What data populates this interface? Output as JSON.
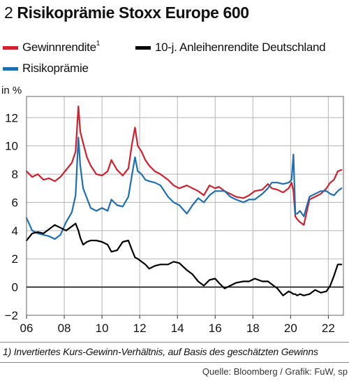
{
  "title_number": "2",
  "title_text": "Risikoprämie Stoxx Europe 600",
  "legend": [
    {
      "label": "Gewinnrendite",
      "sup": "1",
      "color": "#d0202e"
    },
    {
      "label": "10-j. Anleihenrendite Deutschland",
      "sup": "",
      "color": "#000000"
    },
    {
      "label": "Risikoprämie",
      "sup": "",
      "color": "#1e6eb4"
    }
  ],
  "footnote": "1) Invertiertes Kurs-Gewinn-Verhältnis, auf Basis des geschätzten Gewinns",
  "source": "Quelle: Bloomberg / Grafik: FuW, sp",
  "chart_data": {
    "type": "line",
    "ylabel": "in %",
    "xlim": [
      2006.0,
      2022.8
    ],
    "ylim": [
      -2,
      13.5
    ],
    "yticks": [
      -2,
      0,
      2,
      4,
      6,
      8,
      10,
      12
    ],
    "ytick_labels": [
      "−2",
      "0",
      "2",
      "4",
      "6",
      "8",
      "10",
      "12"
    ],
    "xticks": [
      2006,
      2008,
      2010,
      2012,
      2014,
      2016,
      2018,
      2020,
      2022
    ],
    "xtick_labels": [
      "06",
      "08",
      "10",
      "12",
      "14",
      "16",
      "18",
      "20",
      "22"
    ],
    "series": [
      {
        "name": "Gewinnrendite",
        "color": "#d0202e",
        "x": [
          2006.0,
          2006.3,
          2006.6,
          2006.9,
          2007.2,
          2007.5,
          2007.8,
          2008.1,
          2008.4,
          2008.6,
          2008.75,
          2008.85,
          2009.0,
          2009.2,
          2009.4,
          2009.7,
          2010.0,
          2010.3,
          2010.5,
          2010.8,
          2011.1,
          2011.4,
          2011.6,
          2011.75,
          2011.9,
          2012.1,
          2012.3,
          2012.5,
          2012.8,
          2013.1,
          2013.5,
          2013.8,
          2014.1,
          2014.5,
          2014.8,
          2015.1,
          2015.4,
          2015.7,
          2016.0,
          2016.2,
          2016.5,
          2016.8,
          2017.1,
          2017.5,
          2017.8,
          2018.1,
          2018.5,
          2018.8,
          2019.0,
          2019.3,
          2019.6,
          2019.9,
          2020.05,
          2020.15,
          2020.25,
          2020.35,
          2020.5,
          2020.7,
          2021.0,
          2021.3,
          2021.6,
          2021.9,
          2022.1,
          2022.3,
          2022.5,
          2022.7
        ],
        "y": [
          8.2,
          7.8,
          8.0,
          7.6,
          7.7,
          7.5,
          7.8,
          8.3,
          8.8,
          9.6,
          12.8,
          11.0,
          10.2,
          9.2,
          8.6,
          8.0,
          7.9,
          8.2,
          9.0,
          8.3,
          7.9,
          8.4,
          10.2,
          11.3,
          10.0,
          9.6,
          9.0,
          8.6,
          8.2,
          8.0,
          7.6,
          7.2,
          7.0,
          7.2,
          7.0,
          6.8,
          6.5,
          7.2,
          7.0,
          7.1,
          6.8,
          6.6,
          6.4,
          6.3,
          6.5,
          6.8,
          6.9,
          7.3,
          7.0,
          6.9,
          6.7,
          7.0,
          7.4,
          6.8,
          5.0,
          4.8,
          4.6,
          4.4,
          6.2,
          6.4,
          6.6,
          7.0,
          7.4,
          7.6,
          8.2,
          8.3
        ]
      },
      {
        "name": "Risikoprämie",
        "color": "#1e6eb4",
        "x": [
          2006.0,
          2006.3,
          2006.6,
          2006.9,
          2007.2,
          2007.5,
          2007.8,
          2008.1,
          2008.4,
          2008.6,
          2008.75,
          2008.85,
          2009.0,
          2009.2,
          2009.4,
          2009.7,
          2010.0,
          2010.3,
          2010.5,
          2010.8,
          2011.1,
          2011.4,
          2011.6,
          2011.75,
          2011.9,
          2012.1,
          2012.3,
          2012.5,
          2012.8,
          2013.1,
          2013.5,
          2013.8,
          2014.1,
          2014.5,
          2014.8,
          2015.1,
          2015.4,
          2015.7,
          2016.0,
          2016.2,
          2016.5,
          2016.8,
          2017.1,
          2017.5,
          2017.8,
          2018.1,
          2018.5,
          2018.8,
          2019.0,
          2019.3,
          2019.6,
          2019.9,
          2020.05,
          2020.15,
          2020.25,
          2020.35,
          2020.5,
          2020.7,
          2021.0,
          2021.3,
          2021.6,
          2021.9,
          2022.1,
          2022.3,
          2022.5,
          2022.7
        ],
        "y": [
          4.9,
          4.0,
          3.8,
          3.7,
          3.6,
          3.4,
          3.7,
          4.6,
          5.3,
          6.5,
          10.6,
          8.6,
          7.0,
          6.3,
          5.6,
          5.4,
          5.6,
          5.4,
          6.2,
          5.8,
          5.7,
          6.4,
          8.0,
          9.2,
          8.2,
          8.0,
          7.6,
          7.5,
          7.4,
          7.2,
          6.4,
          6.0,
          5.8,
          5.2,
          5.8,
          6.3,
          6.0,
          6.5,
          6.8,
          6.8,
          6.8,
          6.4,
          6.2,
          6.0,
          6.2,
          6.2,
          6.6,
          7.0,
          7.4,
          7.4,
          7.3,
          7.4,
          7.6,
          9.4,
          5.2,
          5.2,
          5.4,
          5.0,
          6.4,
          6.6,
          6.8,
          6.8,
          6.6,
          6.5,
          6.8,
          7.0
        ]
      },
      {
        "name": "10-j. Anleihenrendite Deutschland",
        "color": "#000000",
        "x": [
          2006.0,
          2006.3,
          2006.6,
          2006.9,
          2007.2,
          2007.5,
          2007.8,
          2008.1,
          2008.4,
          2008.6,
          2008.75,
          2008.85,
          2009.0,
          2009.2,
          2009.4,
          2009.7,
          2010.0,
          2010.3,
          2010.5,
          2010.8,
          2011.1,
          2011.4,
          2011.6,
          2011.75,
          2011.9,
          2012.1,
          2012.3,
          2012.5,
          2012.8,
          2013.1,
          2013.5,
          2013.8,
          2014.1,
          2014.5,
          2014.8,
          2015.1,
          2015.4,
          2015.7,
          2016.0,
          2016.2,
          2016.5,
          2016.8,
          2017.1,
          2017.5,
          2017.8,
          2018.1,
          2018.5,
          2018.8,
          2019.0,
          2019.3,
          2019.6,
          2019.9,
          2020.05,
          2020.15,
          2020.25,
          2020.35,
          2020.5,
          2020.7,
          2021.0,
          2021.3,
          2021.6,
          2021.9,
          2022.1,
          2022.3,
          2022.5,
          2022.7
        ],
        "y": [
          3.3,
          3.8,
          3.9,
          3.8,
          4.1,
          4.4,
          4.2,
          4.0,
          4.3,
          4.5,
          4.0,
          3.5,
          3.0,
          3.2,
          3.3,
          3.3,
          3.2,
          3.0,
          2.5,
          2.6,
          3.2,
          3.3,
          2.6,
          2.1,
          2.0,
          1.8,
          1.6,
          1.3,
          1.5,
          1.6,
          1.6,
          1.8,
          1.7,
          1.2,
          0.9,
          0.4,
          0.1,
          0.5,
          0.6,
          0.3,
          -0.1,
          0.1,
          0.3,
          0.4,
          0.4,
          0.6,
          0.4,
          0.4,
          0.2,
          -0.1,
          -0.6,
          -0.3,
          -0.4,
          -0.5,
          -0.5,
          -0.6,
          -0.5,
          -0.6,
          -0.5,
          -0.2,
          -0.4,
          -0.3,
          0.1,
          0.8,
          1.6,
          1.6
        ]
      }
    ]
  }
}
